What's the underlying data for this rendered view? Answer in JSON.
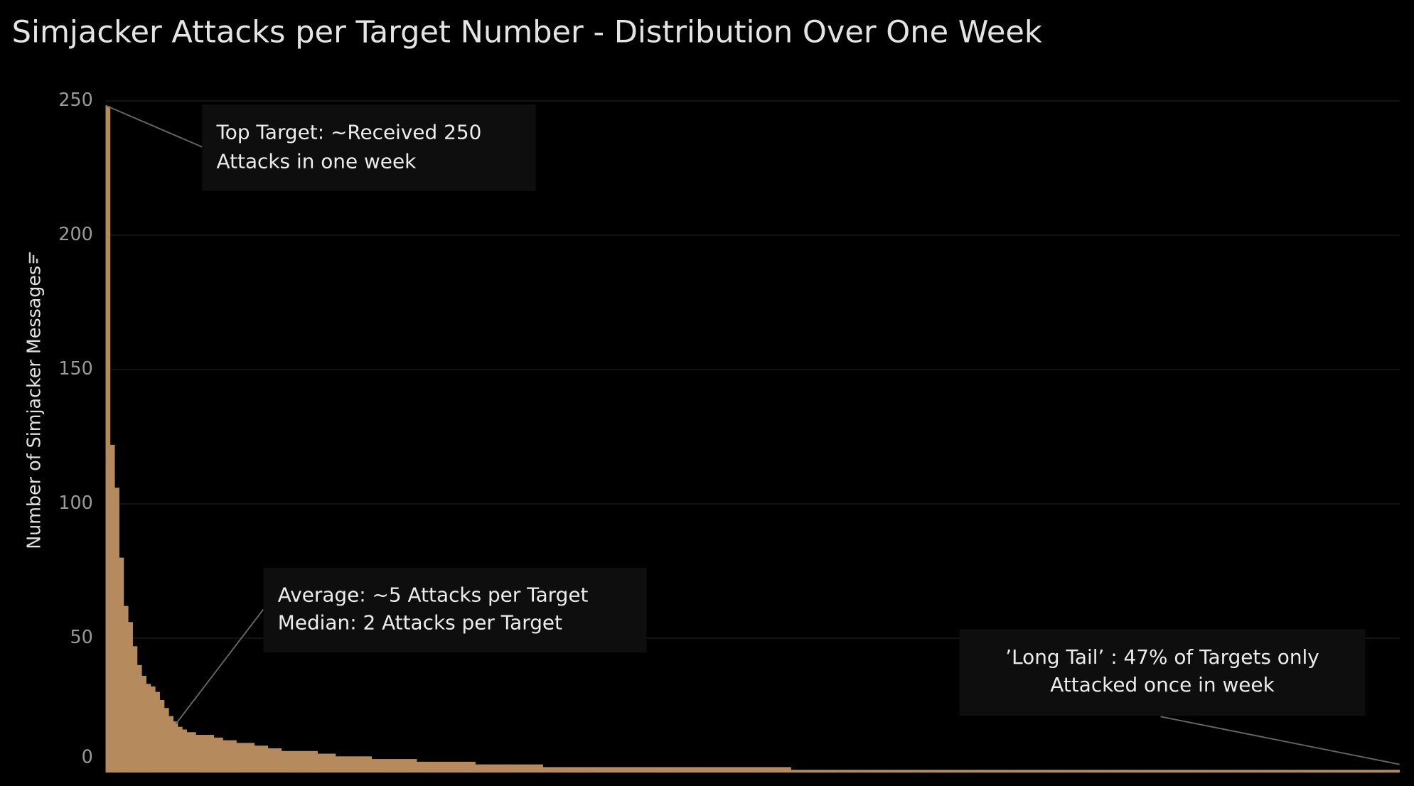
{
  "chart_data": {
    "type": "bar",
    "title": "Simjacker Attacks per Target Number - Distribution Over One Week",
    "y_label": "Number of Simjacker Messages",
    "color": "#b58b5e",
    "ylim": [
      0,
      252
    ],
    "yticks": [
      0,
      50,
      100,
      150,
      200,
      250
    ],
    "grid": true,
    "annotations": [
      {
        "lines": [
          "Top Target: ~Received 250",
          "Attacks in one week"
        ]
      },
      {
        "lines": [
          "Average: ~5 Attacks per Target",
          "Median: 2 Attacks per Target"
        ]
      },
      {
        "lines": [
          "’Long Tail’ : 47% of Targets only",
          "Attacked once in week"
        ]
      }
    ],
    "values": [
      248,
      122,
      106,
      80,
      62,
      56,
      47,
      40,
      36,
      33,
      32,
      30,
      27,
      24,
      21,
      19,
      17,
      16,
      15,
      15,
      14,
      14,
      14,
      14,
      13,
      13,
      12,
      12,
      12,
      11,
      11,
      11,
      11,
      10,
      10,
      10,
      9,
      9,
      9,
      8,
      8,
      8,
      8,
      8,
      8,
      8,
      8,
      7,
      7,
      7,
      7,
      6,
      6,
      6,
      6,
      6,
      6,
      6,
      6,
      5,
      5,
      5,
      5,
      5,
      5,
      5,
      5,
      5,
      5,
      4,
      4,
      4,
      4,
      4,
      4,
      4,
      4,
      4,
      4,
      4,
      4,
      4,
      3,
      3,
      3,
      3,
      3,
      3,
      3,
      3,
      3,
      3,
      3,
      3,
      3,
      3,
      3,
      2,
      2,
      2,
      2,
      2,
      2,
      2,
      2,
      2,
      2,
      2,
      2,
      2,
      2,
      2,
      2,
      2,
      2,
      2,
      2,
      2,
      2,
      2,
      2,
      2,
      2,
      2,
      2,
      2,
      2,
      2,
      2,
      2,
      2,
      2,
      2,
      2,
      2,
      2,
      2,
      2,
      2,
      2,
      2,
      2,
      2,
      2,
      2,
      2,
      2,
      2,
      2,
      2,
      2,
      2,
      1,
      1,
      1,
      1,
      1,
      1,
      1,
      1,
      1,
      1,
      1,
      1,
      1,
      1,
      1,
      1,
      1,
      1,
      1,
      1,
      1,
      1,
      1,
      1,
      1,
      1,
      1,
      1,
      1,
      1,
      1,
      1,
      1,
      1,
      1,
      1,
      1,
      1,
      1,
      1,
      1,
      1,
      1,
      1,
      1,
      1,
      1,
      1,
      1,
      1,
      1,
      1,
      1,
      1,
      1,
      1,
      1,
      1,
      1,
      1,
      1,
      1,
      1,
      1,
      1,
      1,
      1,
      1,
      1,
      1,
      1,
      1,
      1,
      1,
      1,
      1,
      1,
      1,
      1,
      1,
      1,
      1,
      1,
      1,
      1,
      1,
      1,
      1,
      1,
      1,
      1,
      1,
      1,
      1,
      1,
      1,
      1,
      1,
      1,
      1,
      1,
      1,
      1,
      1,
      1,
      1,
      1,
      1,
      1,
      1,
      1,
      1,
      1,
      1,
      1,
      1,
      1,
      1,
      1,
      1,
      1,
      1,
      1,
      1,
      1,
      1,
      1,
      1,
      1,
      1,
      1,
      1,
      1,
      1,
      1
    ]
  }
}
